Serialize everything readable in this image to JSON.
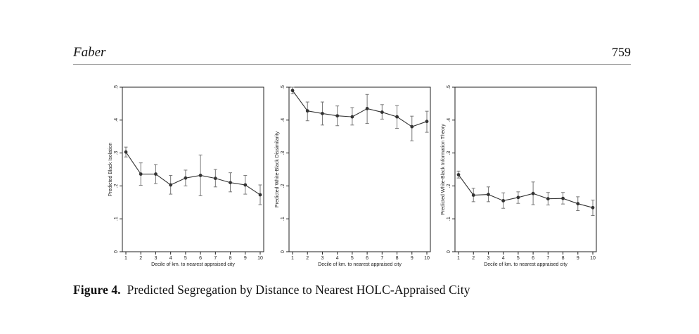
{
  "header": {
    "author": "Faber",
    "page_number": "759"
  },
  "figure": {
    "label": "Figure 4.",
    "title": "Predicted Segregation by Distance to Nearest HOLC-Appraised City"
  },
  "chart_data": [
    {
      "type": "line",
      "ylabel": "Predicted Black Isolation",
      "xlabel": "Decile of km. to nearest appraised city",
      "x": [
        1,
        2,
        3,
        4,
        5,
        6,
        7,
        8,
        9,
        10
      ],
      "y": [
        0.303,
        0.236,
        0.236,
        0.203,
        0.224,
        0.232,
        0.223,
        0.21,
        0.203,
        0.173
      ],
      "ci_low": [
        0.288,
        0.202,
        0.207,
        0.175,
        0.2,
        0.17,
        0.197,
        0.182,
        0.175,
        0.143
      ],
      "ci_high": [
        0.318,
        0.27,
        0.265,
        0.232,
        0.248,
        0.294,
        0.25,
        0.24,
        0.232,
        0.203
      ],
      "ylim": [
        0,
        0.5
      ],
      "yticks": [
        "0",
        ".1",
        ".2",
        ".3",
        ".4",
        ".5"
      ],
      "xticks": [
        "1",
        "2",
        "3",
        "4",
        "5",
        "6",
        "7",
        "8",
        "9",
        "10"
      ]
    },
    {
      "type": "line",
      "ylabel": "Predicted White-Black Dissimilarity",
      "xlabel": "Decile of km. to nearest appraised city",
      "x": [
        1,
        2,
        3,
        4,
        5,
        6,
        7,
        8,
        9,
        10
      ],
      "y": [
        0.49,
        0.428,
        0.42,
        0.413,
        0.41,
        0.435,
        0.424,
        0.41,
        0.38,
        0.396
      ],
      "ci_low": [
        0.48,
        0.398,
        0.385,
        0.383,
        0.385,
        0.39,
        0.403,
        0.375,
        0.337,
        0.363
      ],
      "ci_high": [
        0.5,
        0.455,
        0.455,
        0.443,
        0.438,
        0.478,
        0.447,
        0.444,
        0.412,
        0.427
      ],
      "ylim": [
        0,
        0.5
      ],
      "yticks": [
        "0",
        ".1",
        ".2",
        ".3",
        ".4",
        ".5"
      ],
      "xticks": [
        "1",
        "2",
        "3",
        "4",
        "5",
        "6",
        "7",
        "8",
        "9",
        "10"
      ]
    },
    {
      "type": "line",
      "ylabel": "Predicted White-Black Information Theory",
      "xlabel": "Decile of km. to nearest appraised city",
      "x": [
        1,
        2,
        3,
        4,
        5,
        6,
        7,
        8,
        9,
        10
      ],
      "y": [
        0.234,
        0.172,
        0.174,
        0.155,
        0.165,
        0.177,
        0.161,
        0.162,
        0.146,
        0.134
      ],
      "ci_low": [
        0.224,
        0.152,
        0.152,
        0.132,
        0.147,
        0.143,
        0.142,
        0.145,
        0.125,
        0.11
      ],
      "ci_high": [
        0.245,
        0.193,
        0.197,
        0.179,
        0.182,
        0.212,
        0.18,
        0.18,
        0.167,
        0.157
      ],
      "ylim": [
        0,
        0.5
      ],
      "yticks": [
        "0",
        ".1",
        ".2",
        ".3",
        ".4",
        ".5"
      ],
      "xticks": [
        "1",
        "2",
        "3",
        "4",
        "5",
        "6",
        "7",
        "8",
        "9",
        "10"
      ]
    }
  ]
}
